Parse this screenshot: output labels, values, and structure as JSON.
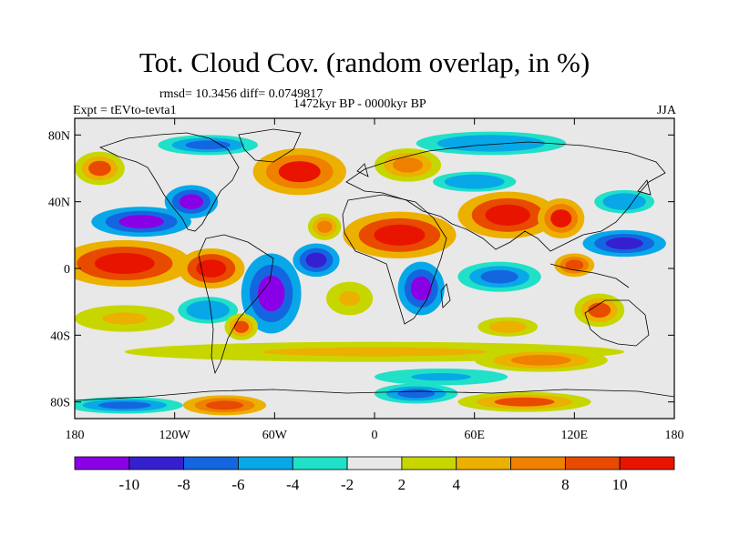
{
  "chart_data": {
    "type": "heatmap",
    "title": "Tot. Cloud Cov. (random overlap, in %)",
    "stats_text": "rmsd= 10.3456  diff= 0.0749817",
    "period": "1472kyr BP - 0000kyr BP",
    "experiment": "Expt = tEVto-tevta1",
    "season": "JJA",
    "x_range": [
      -180,
      180
    ],
    "y_range": [
      -90,
      90
    ],
    "x_ticks": [
      {
        "value": -180,
        "label": "180"
      },
      {
        "value": -120,
        "label": "120W"
      },
      {
        "value": -60,
        "label": "60W"
      },
      {
        "value": 0,
        "label": "0"
      },
      {
        "value": 60,
        "label": "60E"
      },
      {
        "value": 120,
        "label": "120E"
      },
      {
        "value": 180,
        "label": "180"
      }
    ],
    "y_ticks": [
      {
        "value": 80,
        "label": "80N"
      },
      {
        "value": 40,
        "label": "40N"
      },
      {
        "value": 0,
        "label": "0"
      },
      {
        "value": -40,
        "label": "40S"
      },
      {
        "value": -80,
        "label": "80S"
      }
    ],
    "colorbar": {
      "colors": [
        "#8a00e6",
        "#3520d0",
        "#1466e0",
        "#08a8e8",
        "#20e0c8",
        "#e8e8e8",
        "#c8d600",
        "#ecb000",
        "#f08000",
        "#e84a00",
        "#e81400"
      ],
      "labels": [
        "-10",
        "-8",
        "-6",
        "-4",
        "-2",
        "2",
        "4",
        "8",
        "10"
      ]
    },
    "regions": [
      {
        "name": "central-pacific-positive",
        "value": 12,
        "lon": -150,
        "lat": 3,
        "rlon": 40,
        "rlat": 14
      },
      {
        "name": "east-pacific-positive",
        "value": 12,
        "lon": -98,
        "lat": 0,
        "rlon": 20,
        "rlat": 12
      },
      {
        "name": "north-pacific-negative",
        "value": -11,
        "lon": -140,
        "lat": 28,
        "rlon": 30,
        "rlat": 9
      },
      {
        "name": "north-america-negative",
        "value": -11,
        "lon": -110,
        "lat": 40,
        "rlon": 16,
        "rlat": 10
      },
      {
        "name": "north-atlantic-positive",
        "value": 10,
        "lon": -45,
        "lat": 58,
        "rlon": 28,
        "rlat": 14
      },
      {
        "name": "south-america-negative",
        "value": -11,
        "lon": -62,
        "lat": -15,
        "rlon": 18,
        "rlat": 24
      },
      {
        "name": "tropical-atlantic-negative",
        "value": -10,
        "lon": -35,
        "lat": 5,
        "rlon": 14,
        "rlat": 10
      },
      {
        "name": "sahara-arabia-positive",
        "value": 13,
        "lon": 15,
        "lat": 20,
        "rlon": 34,
        "rlat": 14
      },
      {
        "name": "asia-positive",
        "value": 12,
        "lon": 80,
        "lat": 32,
        "rlon": 30,
        "rlat": 14
      },
      {
        "name": "africa-south-negative",
        "value": -11,
        "lon": 28,
        "lat": -12,
        "rlon": 14,
        "rlat": 16
      },
      {
        "name": "indian-ocean-negative",
        "value": -8,
        "lon": 75,
        "lat": -5,
        "rlon": 25,
        "rlat": 9
      },
      {
        "name": "east-asia-positive",
        "value": 11,
        "lon": 112,
        "lat": 30,
        "rlon": 14,
        "rlat": 12
      },
      {
        "name": "west-pacific-negative",
        "value": -9,
        "lon": 150,
        "lat": 15,
        "rlon": 25,
        "rlat": 8
      },
      {
        "name": "northwest-pacific-negative",
        "value": -6,
        "lon": 150,
        "lat": 40,
        "rlon": 18,
        "rlat": 7
      },
      {
        "name": "australia-positive",
        "value": 8,
        "lon": 135,
        "lat": -25,
        "rlon": 15,
        "rlat": 10
      },
      {
        "name": "maritime-continent-positive",
        "value": 9,
        "lon": 120,
        "lat": 2,
        "rlon": 12,
        "rlat": 7
      },
      {
        "name": "arctic-siberia-negative",
        "value": -6,
        "lon": 70,
        "lat": 75,
        "rlon": 45,
        "rlat": 7
      },
      {
        "name": "arctic-america-negative",
        "value": -7,
        "lon": -100,
        "lat": 74,
        "rlon": 30,
        "rlat": 6
      },
      {
        "name": "europe-positive",
        "value": 6,
        "lon": 20,
        "lat": 62,
        "rlon": 20,
        "rlat": 10
      },
      {
        "name": "siberia-negative",
        "value": -6,
        "lon": 60,
        "lat": 52,
        "rlon": 25,
        "rlat": 6
      },
      {
        "name": "south-pacific-positive",
        "value": 5,
        "lon": -150,
        "lat": -30,
        "rlon": 30,
        "rlat": 8
      },
      {
        "name": "southern-ocean-band-positive",
        "value": 5,
        "lon": 0,
        "lat": -50,
        "rlon": 150,
        "rlat": 6
      },
      {
        "name": "southern-ocean-east-positive",
        "value": 6,
        "lon": 100,
        "lat": -55,
        "rlon": 40,
        "rlat": 7
      },
      {
        "name": "southern-ocean-negative",
        "value": -5,
        "lon": 40,
        "lat": -65,
        "rlon": 40,
        "rlat": 5
      },
      {
        "name": "antarctica-west-negative",
        "value": -7,
        "lon": -150,
        "lat": -82,
        "rlon": 35,
        "rlat": 5
      },
      {
        "name": "antarctica-east-positive",
        "value": 9,
        "lon": -90,
        "lat": -82,
        "rlon": 25,
        "rlat": 6
      },
      {
        "name": "antarctica-center-negative",
        "value": -7,
        "lon": 25,
        "lat": -75,
        "rlon": 25,
        "rlat": 6
      },
      {
        "name": "antarctica-east-2-positive",
        "value": 8,
        "lon": 90,
        "lat": -80,
        "rlon": 40,
        "rlat": 6
      },
      {
        "name": "north-pacific-high-lat-positive",
        "value": 8,
        "lon": -165,
        "lat": 60,
        "rlon": 15,
        "rlat": 10
      },
      {
        "name": "mid-atlantic-positive",
        "value": 7,
        "lon": -30,
        "lat": 25,
        "rlon": 10,
        "rlat": 8
      },
      {
        "name": "south-atlantic-positive",
        "value": 5,
        "lon": -15,
        "lat": -18,
        "rlon": 14,
        "rlat": 10
      },
      {
        "name": "indian-ocean-south-positive",
        "value": 4,
        "lon": 80,
        "lat": -35,
        "rlon": 25,
        "rlat": 8
      },
      {
        "name": "east-pacific-south-negative",
        "value": -6,
        "lon": -100,
        "lat": -25,
        "rlon": 18,
        "rlat": 8
      },
      {
        "name": "east-pacific-south-2-positive",
        "value": 8,
        "lon": -80,
        "lat": -35,
        "rlon": 10,
        "rlat": 8
      }
    ]
  }
}
